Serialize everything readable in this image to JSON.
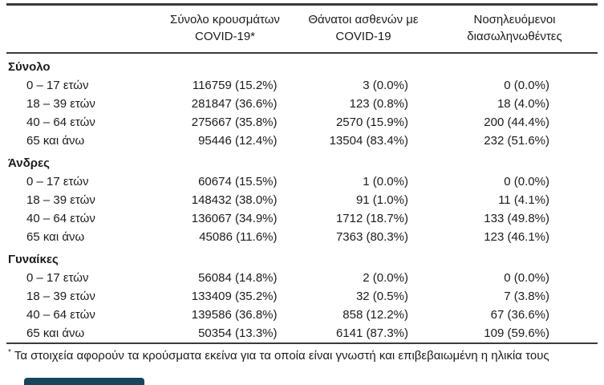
{
  "header": {
    "col_cases": "Σύνολο κρουσμάτων COVID-19*",
    "col_deaths": "Θάνατοι ασθενών με COVID-19",
    "col_intubated": "Νοσηλευόμενοι διασωληνωθέντες"
  },
  "sections": [
    {
      "label": "Σύνολο",
      "rows": [
        {
          "age": "0 – 17 ετών",
          "cases": "116759 (15.2%)",
          "deaths": "3 (0.0%)",
          "intubated": "0 (0.0%)"
        },
        {
          "age": "18 – 39 ετών",
          "cases": "281847 (36.6%)",
          "deaths": "123 (0.8%)",
          "intubated": "18 (4.0%)"
        },
        {
          "age": "40 – 64 ετών",
          "cases": "275667 (35.8%)",
          "deaths": "2570 (15.9%)",
          "intubated": "200 (44.4%)"
        },
        {
          "age": "65 και άνω",
          "cases": "95446 (12.4%)",
          "deaths": "13504 (83.4%)",
          "intubated": "232 (51.6%)"
        }
      ]
    },
    {
      "label": "Άνδρες",
      "rows": [
        {
          "age": "0 – 17 ετών",
          "cases": "60674 (15.5%)",
          "deaths": "1 (0.0%)",
          "intubated": "0 (0.0%)"
        },
        {
          "age": "18 – 39 ετών",
          "cases": "148432 (38.0%)",
          "deaths": "91 (1.0%)",
          "intubated": "11 (4.1%)"
        },
        {
          "age": "40 – 64 ετών",
          "cases": "136067 (34.9%)",
          "deaths": "1712 (18.7%)",
          "intubated": "133 (49.8%)"
        },
        {
          "age": "65 και άνω",
          "cases": "45086 (11.6%)",
          "deaths": "7363 (80.3%)",
          "intubated": "123 (46.1%)"
        }
      ]
    },
    {
      "label": "Γυναίκες",
      "rows": [
        {
          "age": "0 – 17 ετών",
          "cases": "56084 (14.8%)",
          "deaths": "2 (0.0%)",
          "intubated": "0 (0.0%)"
        },
        {
          "age": "18 – 39 ετών",
          "cases": "133409 (35.2%)",
          "deaths": "32 (0.5%)",
          "intubated": "7 (3.8%)"
        },
        {
          "age": "40 – 64 ετών",
          "cases": "139586 (36.8%)",
          "deaths": "858 (12.2%)",
          "intubated": "67 (36.6%)"
        },
        {
          "age": "65 και άνω",
          "cases": "50354 (13.3%)",
          "deaths": "6141 (87.3%)",
          "intubated": "109 (59.6%)"
        }
      ]
    }
  ],
  "footnote": {
    "marker": "*",
    "text": "Τα στοιχεία αφορούν τα κρούσματα εκείνα για τα οποία είναι γνωστή και επιβεβαιωμένη η ηλικία τους"
  },
  "colors": {
    "rule": "#3a3a3a",
    "text": "#1c1c1c",
    "cropped_bar": "#17455c"
  },
  "chart_data": {
    "type": "table",
    "title": "",
    "columns": [
      "",
      "Σύνολο κρουσμάτων COVID-19*",
      "Θάνατοι ασθενών με COVID-19",
      "Νοσηλευόμενοι διασωληνωθέντες"
    ],
    "rows": [
      [
        "Σύνολο",
        "",
        "",
        ""
      ],
      [
        "0 – 17 ετών",
        "116759 (15.2%)",
        "3 (0.0%)",
        "0 (0.0%)"
      ],
      [
        "18 – 39 ετών",
        "281847 (36.6%)",
        "123 (0.8%)",
        "18 (4.0%)"
      ],
      [
        "40 – 64 ετών",
        "275667 (35.8%)",
        "2570 (15.9%)",
        "200 (44.4%)"
      ],
      [
        "65 και άνω",
        "95446 (12.4%)",
        "13504 (83.4%)",
        "232 (51.6%)"
      ],
      [
        "Άνδρες",
        "",
        "",
        ""
      ],
      [
        "0 – 17 ετών",
        "60674 (15.5%)",
        "1 (0.0%)",
        "0 (0.0%)"
      ],
      [
        "18 – 39 ετών",
        "148432 (38.0%)",
        "91 (1.0%)",
        "11 (4.1%)"
      ],
      [
        "40 – 64 ετών",
        "136067 (34.9%)",
        "1712 (18.7%)",
        "133 (49.8%)"
      ],
      [
        "65 και άνω",
        "45086 (11.6%)",
        "7363 (80.3%)",
        "123 (46.1%)"
      ],
      [
        "Γυναίκες",
        "",
        "",
        ""
      ],
      [
        "0 – 17 ετών",
        "56084 (14.8%)",
        "2 (0.0%)",
        "0 (0.0%)"
      ],
      [
        "18 – 39 ετών",
        "133409 (35.2%)",
        "32 (0.5%)",
        "7 (3.8%)"
      ],
      [
        "40 – 64 ετών",
        "139586 (36.8%)",
        "858 (12.2%)",
        "67 (36.6%)"
      ],
      [
        "65 και άνω",
        "50354 (13.3%)",
        "6141 (87.3%)",
        "109 (59.6%)"
      ]
    ],
    "footnote": "* Τα στοιχεία αφορούν τα κρούσματα εκείνα για τα οποία είναι γνωστή και επιβεβαιωμένη η ηλικία τους"
  }
}
